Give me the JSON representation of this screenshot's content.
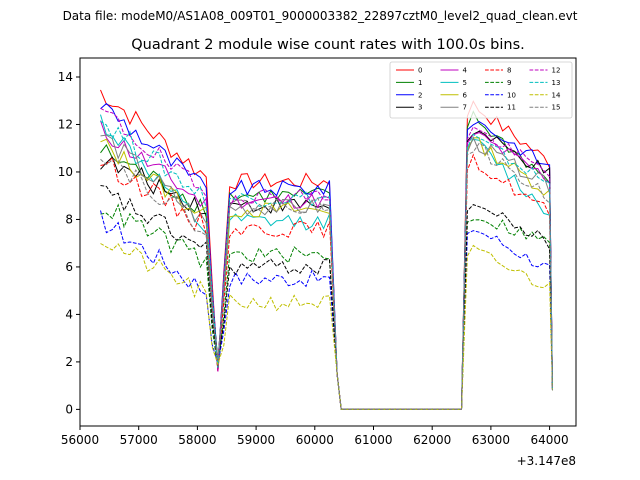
{
  "chart_data": {
    "type": "line",
    "suptitle": "Data file: modeM0/AS1A08_009T01_9000003382_22897cztM0_level2_quad_clean.evt",
    "title": "Quadrant 2 module wise count rates with 100.0s bins.",
    "xlabel": "",
    "ylabel": "",
    "offset_text": "+3.147e8",
    "xlim": [
      56000,
      64450
    ],
    "ylim": [
      -0.7,
      14.8
    ],
    "xticks": [
      56000,
      57000,
      58000,
      59000,
      60000,
      61000,
      62000,
      63000,
      64000
    ],
    "xtick_labels": [
      "56000",
      "57000",
      "58000",
      "59000",
      "60000",
      "61000",
      "62000",
      "63000",
      "64000"
    ],
    "yticks": [
      0,
      2,
      4,
      6,
      8,
      10,
      12,
      14
    ],
    "ytick_labels": [
      "0",
      "2",
      "4",
      "6",
      "8",
      "10",
      "12",
      "14"
    ],
    "legend_position": "top-right",
    "segments": [
      {
        "start": 56350,
        "end": 58350,
        "dip_at": 58350,
        "dip_value": 2.0
      },
      {
        "start": 58550,
        "end": 60300
      },
      {
        "gap_low_start": 60450,
        "gap_low_end": 62500,
        "value": 0
      },
      {
        "start": 62600,
        "end": 64000,
        "end_drop_at": 64050
      }
    ],
    "series": [
      {
        "name": "0",
        "color": "#ff0000",
        "dash": "solid",
        "level_seg1_start": 13.4,
        "level_seg1_end": 9.8,
        "level_seg2": 9.6,
        "level_seg3_start": 13.0,
        "level_seg3_end": 10.4
      },
      {
        "name": "1",
        "color": "#008000",
        "dash": "solid",
        "level_seg1_start": 10.9,
        "level_seg1_end": 8.5,
        "level_seg2": 9.0,
        "level_seg3_start": 12.5,
        "level_seg3_end": 9.6
      },
      {
        "name": "2",
        "color": "#0000ff",
        "dash": "solid",
        "level_seg1_start": 12.9,
        "level_seg1_end": 9.2,
        "level_seg2": 9.3,
        "level_seg3_start": 12.4,
        "level_seg3_end": 10.2
      },
      {
        "name": "3",
        "color": "#000000",
        "dash": "solid",
        "level_seg1_start": 10.5,
        "level_seg1_end": 8.5,
        "level_seg2": 8.6,
        "level_seg3_start": 11.9,
        "level_seg3_end": 9.9
      },
      {
        "name": "4",
        "color": "#bf00bf",
        "dash": "solid",
        "level_seg1_start": 11.8,
        "level_seg1_end": 8.6,
        "level_seg2": 8.8,
        "level_seg3_start": 11.8,
        "level_seg3_end": 9.7
      },
      {
        "name": "5",
        "color": "#00bfbf",
        "dash": "solid",
        "level_seg1_start": 12.2,
        "level_seg1_end": 7.5,
        "level_seg2": 7.9,
        "level_seg3_start": 11.6,
        "level_seg3_end": 8.2
      },
      {
        "name": "6",
        "color": "#bfbf00",
        "dash": "solid",
        "level_seg1_start": 11.2,
        "level_seg1_end": 8.1,
        "level_seg2": 8.4,
        "level_seg3_start": 11.5,
        "level_seg3_end": 9.1
      },
      {
        "name": "7",
        "color": "#808080",
        "dash": "solid",
        "level_seg1_start": 11.6,
        "level_seg1_end": 7.8,
        "level_seg2": 8.5,
        "level_seg3_start": 11.4,
        "level_seg3_end": 9.4
      },
      {
        "name": "8",
        "color": "#ff0000",
        "dash": "dashed",
        "level_seg1_start": 10.5,
        "level_seg1_end": 7.7,
        "level_seg2": 7.6,
        "level_seg3_start": 10.6,
        "level_seg3_end": 8.3
      },
      {
        "name": "9",
        "color": "#008000",
        "dash": "dashed",
        "level_seg1_start": 8.6,
        "level_seg1_end": 6.2,
        "level_seg2": 6.5,
        "level_seg3_start": 8.3,
        "level_seg3_end": 7.0
      },
      {
        "name": "10",
        "color": "#0000ff",
        "dash": "dashed",
        "level_seg1_start": 8.0,
        "level_seg1_end": 5.0,
        "level_seg2": 5.5,
        "level_seg3_start": 7.8,
        "level_seg3_end": 5.9
      },
      {
        "name": "11",
        "color": "#000000",
        "dash": "dashed",
        "level_seg1_start": 9.2,
        "level_seg1_end": 6.7,
        "level_seg2": 6.0,
        "level_seg3_start": 8.8,
        "level_seg3_end": 7.0
      },
      {
        "name": "12",
        "color": "#bf00bf",
        "dash": "dashed",
        "level_seg1_start": 12.6,
        "level_seg1_end": 9.0,
        "level_seg2": 9.0,
        "level_seg3_start": 12.0,
        "level_seg3_end": 9.9
      },
      {
        "name": "13",
        "color": "#00bfbf",
        "dash": "dashed",
        "level_seg1_start": 12.2,
        "level_seg1_end": 8.9,
        "level_seg2": 8.9,
        "level_seg3_start": 11.6,
        "level_seg3_end": 9.5
      },
      {
        "name": "14",
        "color": "#bfbf00",
        "dash": "dashed",
        "level_seg1_start": 7.2,
        "level_seg1_end": 4.8,
        "level_seg2": 4.5,
        "level_seg3_start": 6.8,
        "level_seg3_end": 5.1
      },
      {
        "name": "15",
        "color": "#808080",
        "dash": "dashed",
        "level_seg1_start": 10.9,
        "level_seg1_end": 7.6,
        "level_seg2": 8.6,
        "level_seg3_start": 11.3,
        "level_seg3_end": 8.9
      }
    ]
  }
}
